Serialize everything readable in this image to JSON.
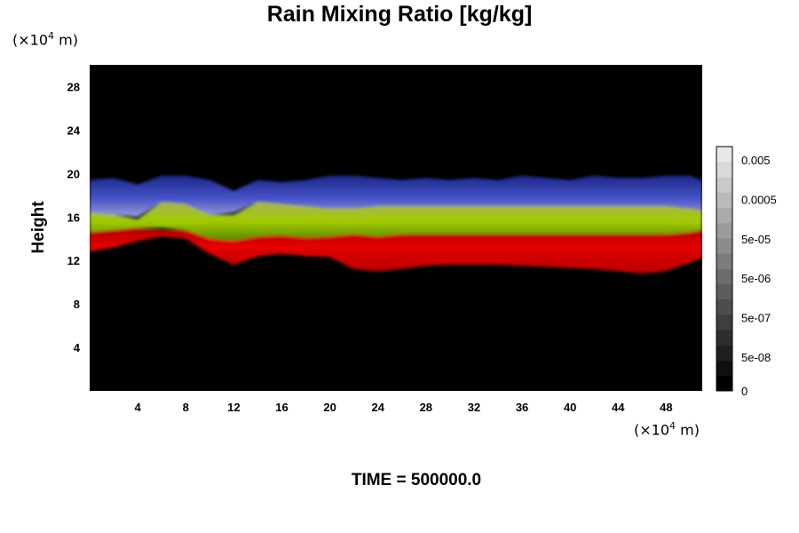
{
  "chart_data": {
    "type": "heatmap",
    "title": "Rain Mixing Ratio [kg/kg]",
    "xlabel": "",
    "ylabel": "Height",
    "x_unit_pre": "(×10",
    "x_unit_exp": "4",
    "x_unit_post": " m)",
    "y_unit_pre": "(×10",
    "y_unit_exp": "4",
    "y_unit_post": " m)",
    "xlim": [
      0,
      51
    ],
    "ylim": [
      0,
      30
    ],
    "x_ticks": [
      "4",
      "8",
      "12",
      "16",
      "20",
      "24",
      "28",
      "32",
      "36",
      "40",
      "44",
      "48"
    ],
    "y_ticks": [
      "4",
      "8",
      "12",
      "16",
      "20",
      "24",
      "28"
    ],
    "x_tick_values": [
      4,
      8,
      12,
      16,
      20,
      24,
      28,
      32,
      36,
      40,
      44,
      48
    ],
    "y_tick_values": [
      4,
      8,
      12,
      16,
      20,
      24,
      28
    ],
    "background_color": "#000000",
    "layers": [
      {
        "band": "red",
        "color": "#dd0000",
        "x": [
          0,
          2,
          4,
          6,
          8,
          10,
          12,
          14,
          16,
          18,
          20,
          22,
          24,
          26,
          28,
          30,
          32,
          34,
          36,
          38,
          40,
          42,
          44,
          46,
          48,
          50,
          51
        ],
        "bottom": [
          12.8,
          13.2,
          13.8,
          14.2,
          14.0,
          12.6,
          11.6,
          12.4,
          12.6,
          12.4,
          12.3,
          11.2,
          11.0,
          11.2,
          11.5,
          11.6,
          11.6,
          11.6,
          11.5,
          11.4,
          11.3,
          11.2,
          11.0,
          10.8,
          11.0,
          11.8,
          12.2
        ],
        "top": [
          14.6,
          14.8,
          15.0,
          14.8,
          14.8,
          14.2,
          13.8,
          14.2,
          14.3,
          14.1,
          14.2,
          14.4,
          14.2,
          14.4,
          14.4,
          14.4,
          14.4,
          14.4,
          14.4,
          14.4,
          14.4,
          14.4,
          14.4,
          14.4,
          14.4,
          14.6,
          14.8
        ]
      },
      {
        "band": "yellow-green",
        "color": "#9acd00",
        "x": [
          0,
          2,
          4,
          6,
          8,
          10,
          12,
          14,
          16,
          18,
          20,
          22,
          24,
          26,
          28,
          30,
          32,
          34,
          36,
          38,
          40,
          42,
          44,
          46,
          48,
          50,
          51
        ],
        "bottom": [
          14.6,
          14.8,
          15.0,
          15.0,
          14.8,
          14.0,
          13.8,
          14.2,
          14.3,
          14.1,
          14.2,
          14.4,
          14.2,
          14.4,
          14.4,
          14.4,
          14.4,
          14.4,
          14.4,
          14.4,
          14.4,
          14.4,
          14.4,
          14.4,
          14.4,
          14.6,
          14.8
        ],
        "top": [
          16.4,
          16.2,
          15.8,
          17.4,
          17.2,
          16.2,
          16.2,
          17.4,
          17.2,
          17.0,
          16.8,
          16.8,
          17.0,
          17.0,
          17.0,
          17.0,
          17.0,
          17.0,
          17.0,
          17.0,
          17.0,
          17.0,
          17.0,
          17.0,
          17.0,
          16.8,
          16.6
        ]
      },
      {
        "band": "blue",
        "color": "#3a44c4",
        "x": [
          0,
          2,
          4,
          6,
          8,
          10,
          12,
          14,
          16,
          18,
          20,
          22,
          24,
          26,
          28,
          30,
          32,
          34,
          36,
          38,
          40,
          42,
          44,
          46,
          48,
          50,
          51
        ],
        "bottom": [
          16.4,
          16.2,
          16.0,
          17.4,
          17.2,
          16.2,
          16.4,
          17.4,
          17.2,
          17.0,
          16.8,
          16.8,
          17.0,
          17.0,
          17.0,
          17.0,
          17.0,
          17.0,
          17.0,
          17.0,
          17.0,
          17.0,
          17.0,
          17.0,
          17.0,
          16.8,
          16.6
        ],
        "top": [
          19.4,
          19.6,
          19.0,
          19.8,
          19.8,
          19.4,
          18.4,
          19.4,
          19.2,
          19.4,
          19.8,
          19.8,
          19.6,
          19.4,
          19.6,
          19.4,
          19.6,
          19.4,
          19.8,
          19.6,
          19.4,
          19.8,
          19.6,
          19.6,
          19.8,
          19.8,
          19.4
        ]
      }
    ],
    "colorbar": {
      "labels": [
        "0.005",
        "0.0005",
        "5e-05",
        "5e-06",
        "5e-07",
        "5e-08",
        "0"
      ],
      "levels": 16,
      "color_low": "#000000",
      "color_high": "#e8e8e8"
    }
  },
  "footer": {
    "time_label": "TIME = 500000.0"
  }
}
